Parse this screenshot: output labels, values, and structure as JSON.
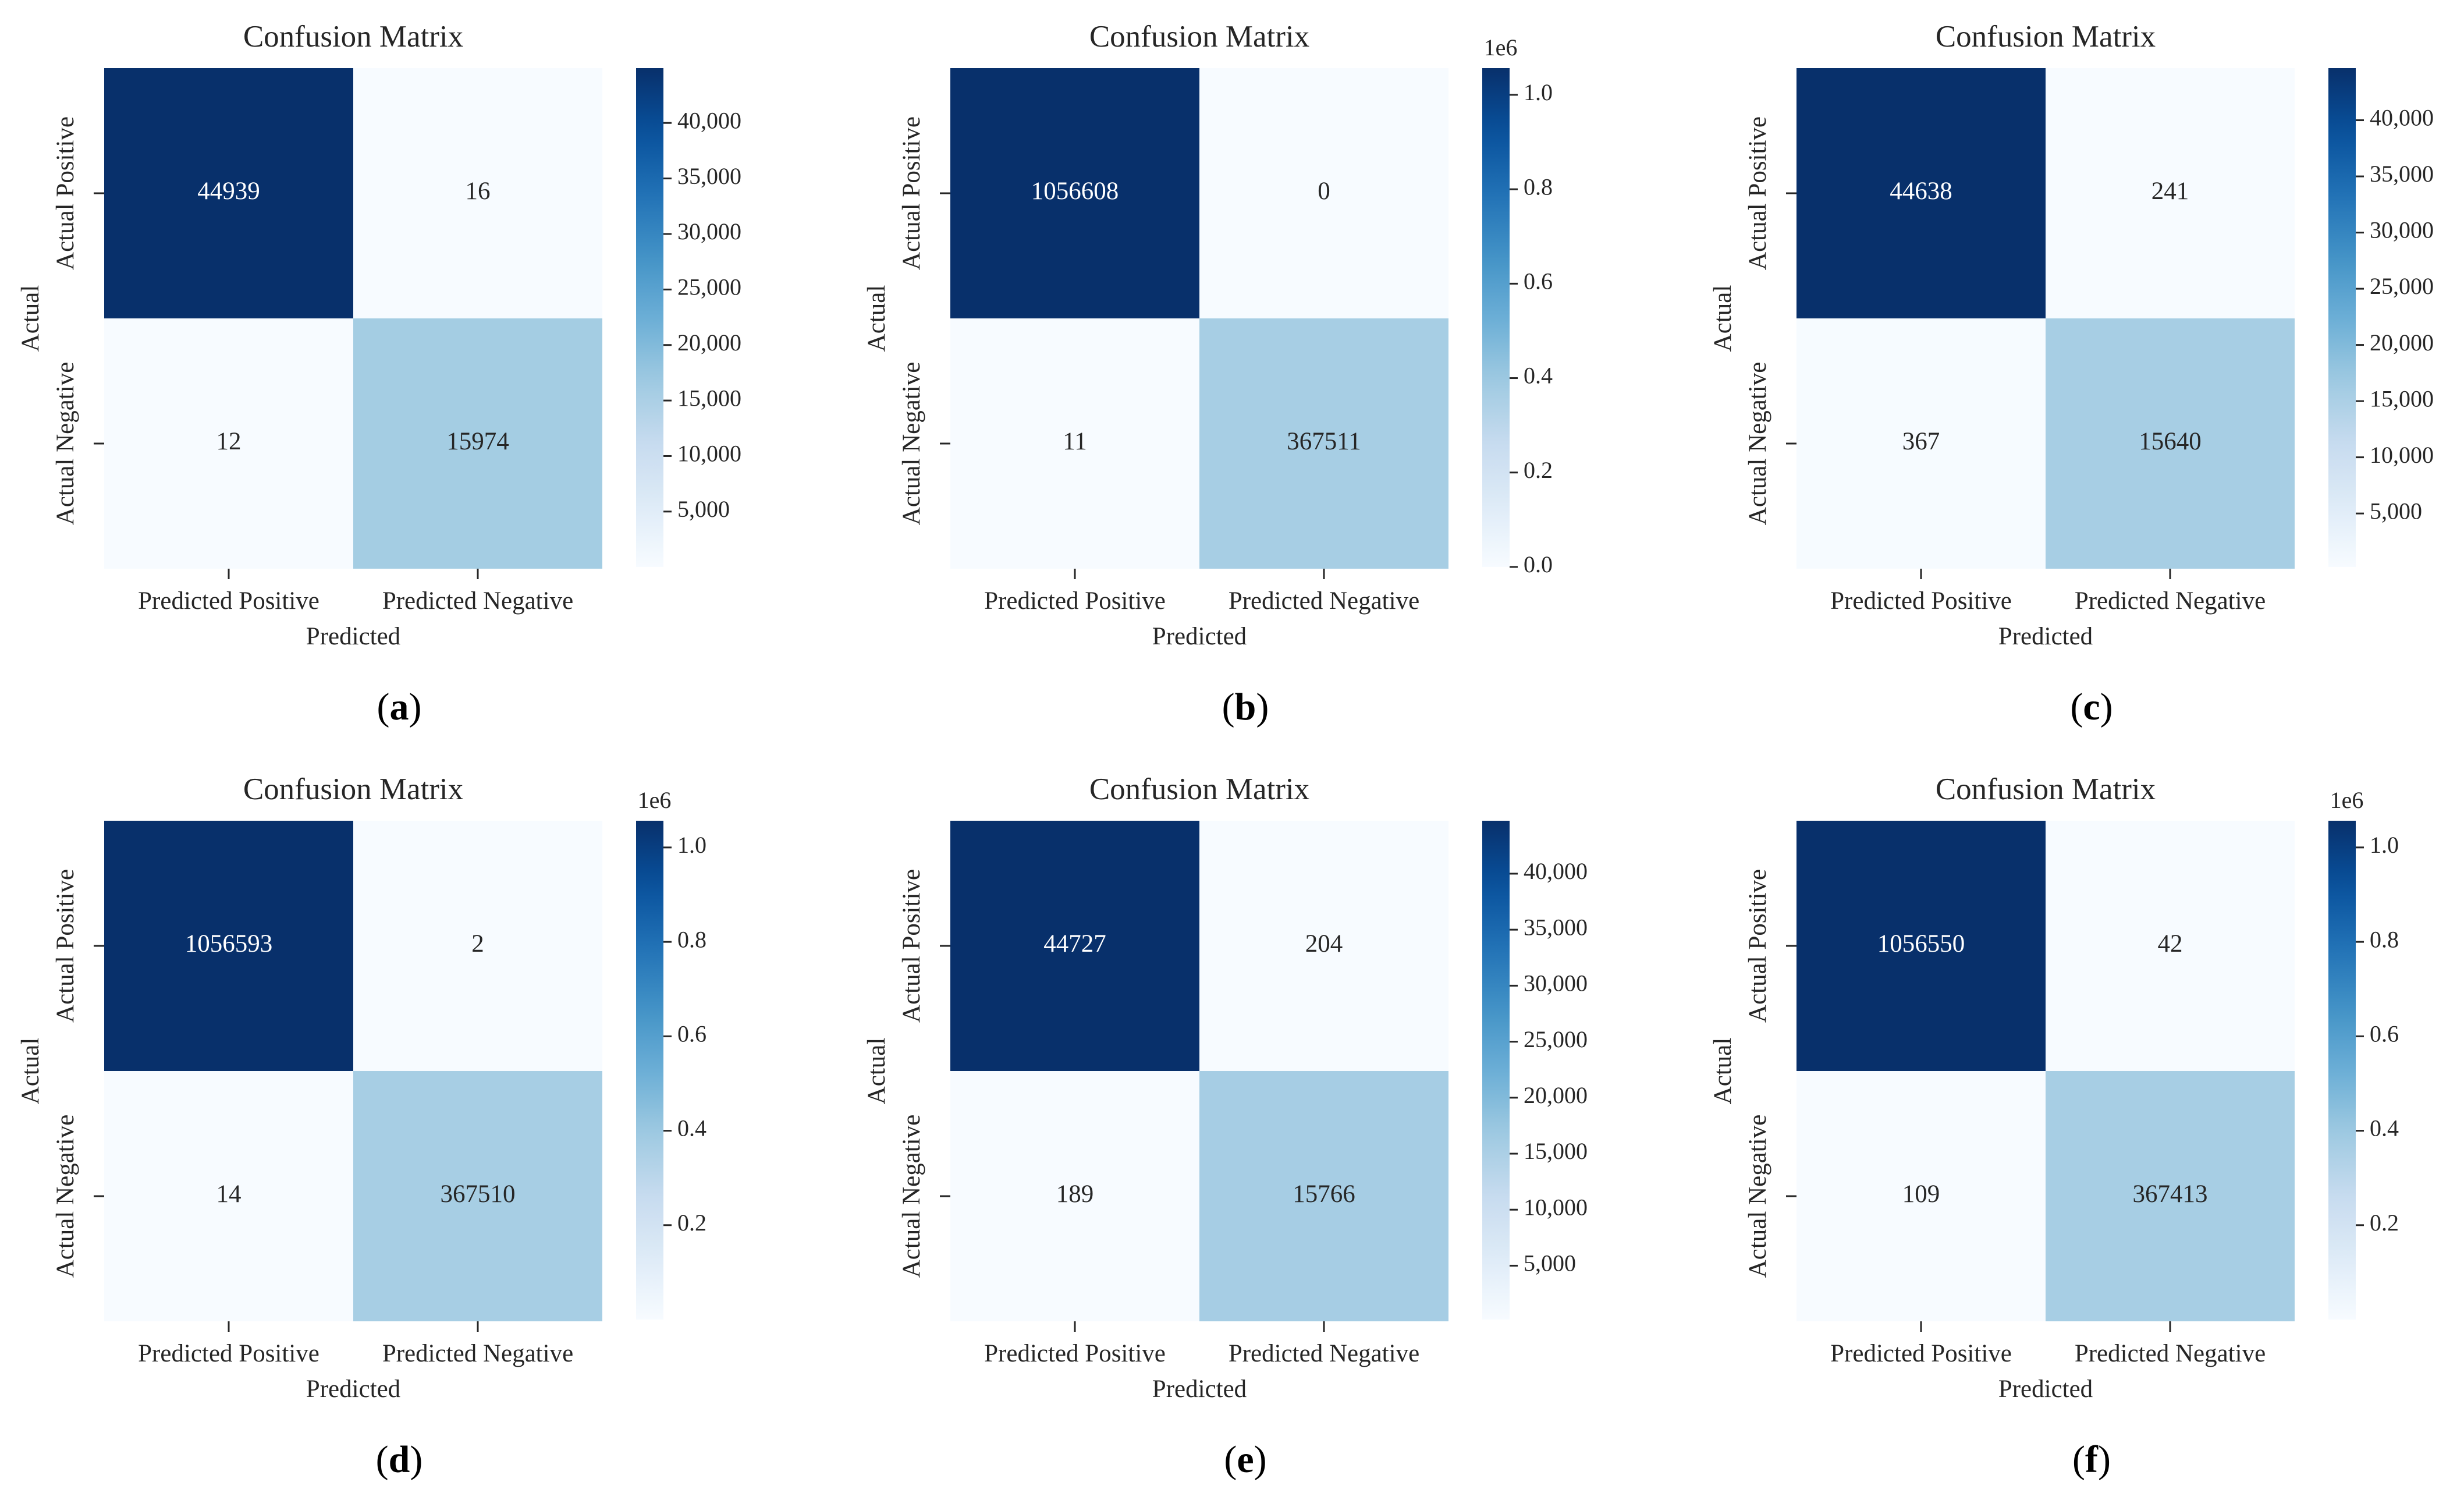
{
  "chart_data": [
    {
      "panel_label": "(a)",
      "type": "heatmap",
      "title": "Confusion Matrix",
      "xlabel": "Predicted",
      "ylabel": "Actual",
      "x_categories": [
        "Predicted Positive",
        "Predicted Negative"
      ],
      "y_categories": [
        "Actual Positive",
        "Actual Negative"
      ],
      "values": [
        [
          44939,
          16
        ],
        [
          12,
          15974
        ]
      ],
      "cell_text": [
        [
          "44939",
          "16"
        ],
        [
          "12",
          "15974"
        ]
      ],
      "colorbar": {
        "vmin": 12,
        "vmax": 44939,
        "offset_label": "",
        "ticks": [
          5000,
          10000,
          15000,
          20000,
          25000,
          30000,
          35000,
          40000
        ],
        "tick_labels": [
          "5,000",
          "10,000",
          "15,000",
          "20,000",
          "25,000",
          "30,000",
          "35,000",
          "40,000"
        ]
      }
    },
    {
      "panel_label": "(b)",
      "type": "heatmap",
      "title": "Confusion Matrix",
      "xlabel": "Predicted",
      "ylabel": "Actual",
      "x_categories": [
        "Predicted Positive",
        "Predicted Negative"
      ],
      "y_categories": [
        "Actual Positive",
        "Actual Negative"
      ],
      "values": [
        [
          1056608,
          0
        ],
        [
          11,
          367511
        ]
      ],
      "cell_text": [
        [
          "1056608",
          "0"
        ],
        [
          "11",
          "367511"
        ]
      ],
      "colorbar": {
        "vmin": 0,
        "vmax": 1056608,
        "offset_label": "1e6",
        "ticks": [
          0,
          200000,
          400000,
          600000,
          800000,
          1000000
        ],
        "tick_labels": [
          "0.0",
          "0.2",
          "0.4",
          "0.6",
          "0.8",
          "1.0"
        ]
      }
    },
    {
      "panel_label": "(c)",
      "type": "heatmap",
      "title": "Confusion Matrix",
      "xlabel": "Predicted",
      "ylabel": "Actual",
      "x_categories": [
        "Predicted Positive",
        "Predicted Negative"
      ],
      "y_categories": [
        "Actual Positive",
        "Actual Negative"
      ],
      "values": [
        [
          44638,
          241
        ],
        [
          367,
          15640
        ]
      ],
      "cell_text": [
        [
          "44638",
          "241"
        ],
        [
          "367",
          "15640"
        ]
      ],
      "colorbar": {
        "vmin": 241,
        "vmax": 44638,
        "offset_label": "",
        "ticks": [
          5000,
          10000,
          15000,
          20000,
          25000,
          30000,
          35000,
          40000
        ],
        "tick_labels": [
          "5,000",
          "10,000",
          "15,000",
          "20,000",
          "25,000",
          "30,000",
          "35,000",
          "40,000"
        ]
      }
    },
    {
      "panel_label": "(d)",
      "type": "heatmap",
      "title": "Confusion Matrix",
      "xlabel": "Predicted",
      "ylabel": "Actual",
      "x_categories": [
        "Predicted Positive",
        "Predicted Negative"
      ],
      "y_categories": [
        "Actual Positive",
        "Actual Negative"
      ],
      "values": [
        [
          1056593,
          2
        ],
        [
          14,
          367510
        ]
      ],
      "cell_text": [
        [
          "1056593",
          "2"
        ],
        [
          "14",
          "367510"
        ]
      ],
      "colorbar": {
        "vmin": 2,
        "vmax": 1056593,
        "offset_label": "1e6",
        "ticks": [
          200000,
          400000,
          600000,
          800000,
          1000000
        ],
        "tick_labels": [
          "0.2",
          "0.4",
          "0.6",
          "0.8",
          "1.0"
        ]
      }
    },
    {
      "panel_label": "(e)",
      "type": "heatmap",
      "title": "Confusion Matrix",
      "xlabel": "Predicted",
      "ylabel": "Actual",
      "x_categories": [
        "Predicted Positive",
        "Predicted Negative"
      ],
      "y_categories": [
        "Actual Positive",
        "Actual Negative"
      ],
      "values": [
        [
          44727,
          204
        ],
        [
          189,
          15766
        ]
      ],
      "cell_text": [
        [
          "44727",
          "204"
        ],
        [
          "189",
          "15766"
        ]
      ],
      "colorbar": {
        "vmin": 189,
        "vmax": 44727,
        "offset_label": "",
        "ticks": [
          5000,
          10000,
          15000,
          20000,
          25000,
          30000,
          35000,
          40000
        ],
        "tick_labels": [
          "5,000",
          "10,000",
          "15,000",
          "20,000",
          "25,000",
          "30,000",
          "35,000",
          "40,000"
        ]
      }
    },
    {
      "panel_label": "(f)",
      "type": "heatmap",
      "title": "Confusion Matrix",
      "xlabel": "Predicted",
      "ylabel": "Actual",
      "x_categories": [
        "Predicted Positive",
        "Predicted Negative"
      ],
      "y_categories": [
        "Actual Positive",
        "Actual Negative"
      ],
      "values": [
        [
          1056550,
          42
        ],
        [
          109,
          367413
        ]
      ],
      "cell_text": [
        [
          "1056550",
          "42"
        ],
        [
          "109",
          "367413"
        ]
      ],
      "colorbar": {
        "vmin": 42,
        "vmax": 1056550,
        "offset_label": "1e6",
        "ticks": [
          200000,
          400000,
          600000,
          800000,
          1000000
        ],
        "tick_labels": [
          "0.2",
          "0.4",
          "0.6",
          "0.8",
          "1.0"
        ]
      }
    }
  ]
}
